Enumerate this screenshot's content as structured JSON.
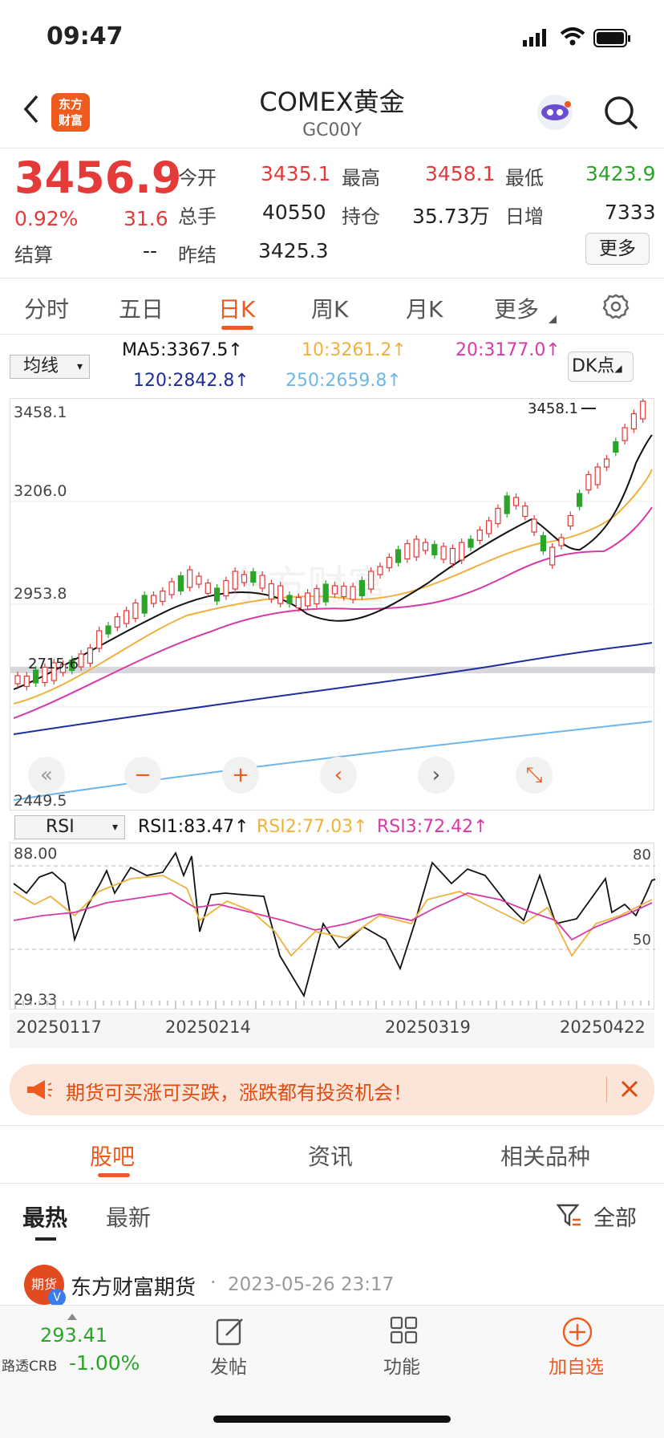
{
  "status_bar": {
    "time": "09:47"
  },
  "header": {
    "title": "COMEX黄金",
    "code": "GC00Y",
    "logo_text": "东方\n财富"
  },
  "quote": {
    "price": "3456.9",
    "pct": "0.92%",
    "change": "31.6",
    "rows": [
      [
        {
          "label": "今开",
          "value": "3435.1",
          "color": "red"
        },
        {
          "label": "最高",
          "value": "3458.1",
          "color": "red"
        },
        {
          "label": "最低",
          "value": "3423.9",
          "color": "green"
        }
      ],
      [
        {
          "label": "总手",
          "value": "40550",
          "color": "dark"
        },
        {
          "label": "持仓",
          "value": "35.73万",
          "color": "dark"
        },
        {
          "label": "日增",
          "value": "7333",
          "color": "dark"
        }
      ]
    ],
    "settle_label": "结算",
    "settle_value": "--",
    "prev_settle_label": "昨结",
    "prev_settle_value": "3425.3",
    "more_label": "更多"
  },
  "period_tabs": [
    "分时",
    "五日",
    "日K",
    "周K",
    "月K",
    "更多"
  ],
  "active_tab": "日K",
  "ma_panel": {
    "selector": "均线",
    "ma5": "MA5:3367.5↑",
    "ma10": "10:3261.2↑",
    "ma20": "20:3177.0↑",
    "ma120": "120:2842.8↑",
    "ma250": "250:2659.8↑",
    "dk_label": "DK点",
    "colors": {
      "ma5": "#111111",
      "ma10": "#f0b13c",
      "ma20": "#d63aa8",
      "ma120": "#1f2e9c",
      "ma250": "#6fb6ea"
    }
  },
  "kline_axis": {
    "labels": [
      "3458.1",
      "3206.0",
      "2953.8",
      "2449.5"
    ],
    "high_marker": "3458.1",
    "low_marker": "2715.6"
  },
  "rsi_panel": {
    "selector": "RSI",
    "rsi1": "RSI1:83.47↑",
    "rsi2": "RSI2:77.03↑",
    "rsi3": "RSI3:72.42↑",
    "axis": [
      "88.00",
      "29.33"
    ],
    "ref_80": "80",
    "ref_50": "50",
    "colors": {
      "rsi1": "#111111",
      "rsi2": "#f0b13c",
      "rsi3": "#d63aa8"
    }
  },
  "date_axis": [
    "20250117",
    "20250214",
    "20250319",
    "20250422"
  ],
  "banner": {
    "text": "期货可买涨可买跌，涨跌都有投资机会！"
  },
  "section_tabs": [
    "股吧",
    "资讯",
    "相关品种"
  ],
  "sub_tabs": {
    "hot": "最热",
    "latest": "最新",
    "filter": "全部"
  },
  "post": {
    "author": "东方财富期货",
    "time": "2023-05-26 23:17",
    "badge": "期货"
  },
  "bottom_bar": {
    "index_value": "293.41",
    "index_name": "路透CRB",
    "index_pct": "-1.00%",
    "post": "发帖",
    "func": "功能",
    "add": "加自选"
  }
}
